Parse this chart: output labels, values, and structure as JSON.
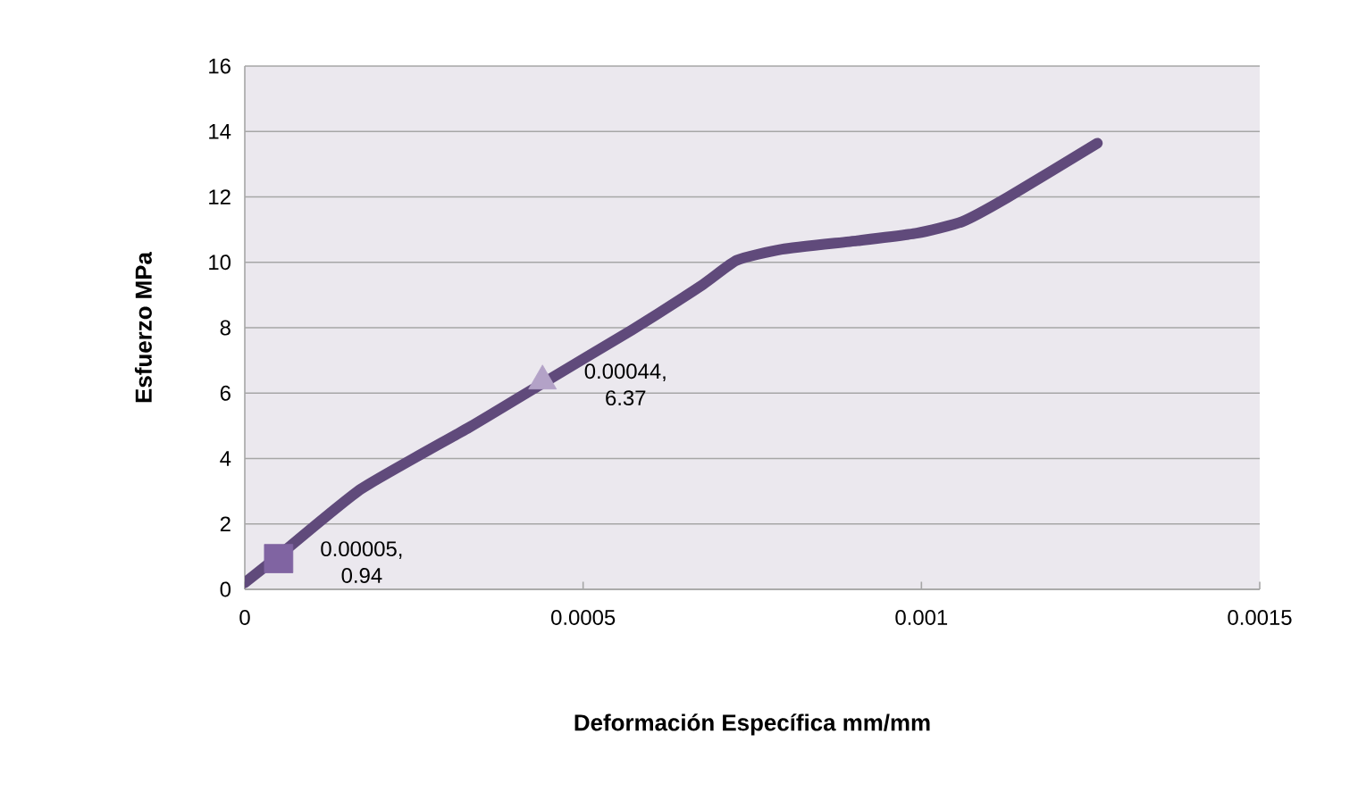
{
  "chart_data": {
    "type": "line",
    "xlabel": "Deformación Específica mm/mm",
    "ylabel": "Esfuerzo  MPa",
    "xlim": [
      0,
      0.0015
    ],
    "xticks": [
      0,
      0.0005,
      0.001,
      0.0015
    ],
    "ylim": [
      0,
      16
    ],
    "yticks": [
      0,
      2,
      4,
      6,
      8,
      10,
      12,
      14,
      16
    ],
    "grid": "y",
    "series": [
      {
        "color": "#604a7b",
        "marker": "none",
        "x": [
          0,
          4.8e-05,
          0.000172,
          0.000333,
          0.00044,
          0.000572,
          0.000677,
          0.000727,
          0.000794,
          0.000905,
          0.000993,
          0.00106,
          0.001127,
          0.00126
        ],
        "values": [
          0.2,
          0.99,
          3.07,
          4.97,
          6.3,
          7.93,
          9.32,
          10.06,
          10.4,
          10.66,
          10.89,
          11.24,
          11.98,
          13.64
        ]
      },
      {
        "type": "scatter",
        "color": "#8064a2",
        "marker": "square",
        "x": [
          5e-05
        ],
        "values": [
          0.94
        ],
        "value_labels": [
          "0.00005, 0.94"
        ]
      },
      {
        "type": "scatter",
        "color": "#b3a2c7",
        "marker": "triangle",
        "x": [
          0.00044
        ],
        "values": [
          6.37
        ],
        "value_labels": [
          "0.00044, 6.37"
        ]
      }
    ]
  }
}
